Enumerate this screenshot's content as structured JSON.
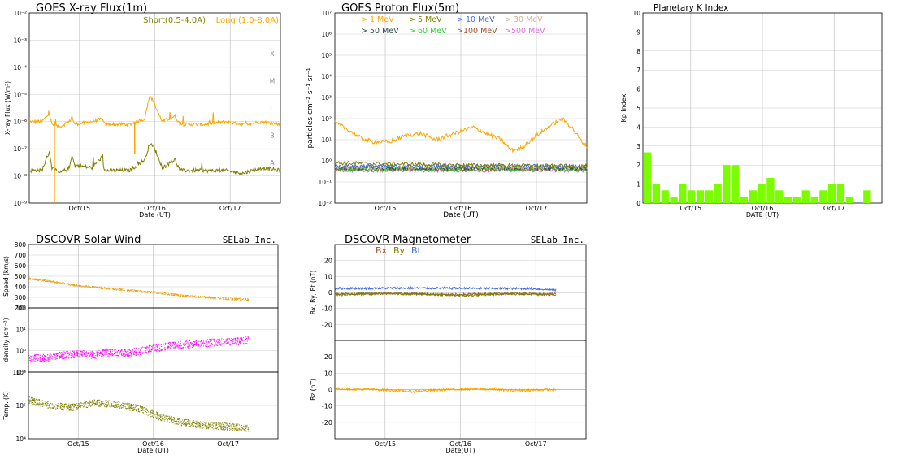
{
  "chart_data": [
    {
      "id": "xray",
      "type": "line",
      "title": "GOES X-ray Flux(1m)",
      "xlabel": "Date (UT)",
      "ylabel": "X-ray Flux (W/m²)",
      "yscale": "log",
      "ylim": [
        1e-09,
        0.01
      ],
      "y_ticks": [
        "10⁻²",
        "10⁻³",
        "10⁻⁴",
        "10⁻⁵",
        "10⁻⁶",
        "10⁻⁷",
        "10⁻⁸",
        "10⁻⁹"
      ],
      "x_ticks": [
        "Oct/15",
        "Oct/16",
        "Oct/17"
      ],
      "flare_classes": [
        "X",
        "M",
        "C",
        "B",
        "A"
      ],
      "grid": true,
      "series": [
        {
          "name": "Short(0.5-4.0A)",
          "color": "#808000",
          "anchors": [
            [
              0,
              -7.8
            ],
            [
              0.05,
              -7.8
            ],
            [
              0.08,
              -7.1
            ],
            [
              0.09,
              -7.7
            ],
            [
              0.12,
              -7.9
            ],
            [
              0.16,
              -7.7
            ],
            [
              0.17,
              -7.2
            ],
            [
              0.18,
              -7.6
            ],
            [
              0.25,
              -7.7
            ],
            [
              0.29,
              -7.3
            ],
            [
              0.3,
              -7.8
            ],
            [
              0.4,
              -7.8
            ],
            [
              0.46,
              -7.4
            ],
            [
              0.48,
              -6.8
            ],
            [
              0.5,
              -7.0
            ],
            [
              0.53,
              -7.7
            ],
            [
              0.58,
              -7.4
            ],
            [
              0.6,
              -7.8
            ],
            [
              0.7,
              -7.8
            ],
            [
              0.78,
              -7.8
            ],
            [
              0.85,
              -7.9
            ],
            [
              0.93,
              -7.7
            ],
            [
              1,
              -7.8
            ]
          ]
        },
        {
          "name": "Long (1.0-8.0A)",
          "color": "#ffa500",
          "anchors": [
            [
              0,
              -6.0
            ],
            [
              0.05,
              -6.0
            ],
            [
              0.08,
              -5.7
            ],
            [
              0.09,
              -6.1
            ],
            [
              0.12,
              -6.2
            ],
            [
              0.16,
              -6.0
            ],
            [
              0.17,
              -5.8
            ],
            [
              0.18,
              -6.1
            ],
            [
              0.25,
              -6.0
            ],
            [
              0.29,
              -5.9
            ],
            [
              0.3,
              -6.1
            ],
            [
              0.4,
              -6.1
            ],
            [
              0.46,
              -5.9
            ],
            [
              0.48,
              -5.0
            ],
            [
              0.5,
              -5.4
            ],
            [
              0.53,
              -6.0
            ],
            [
              0.58,
              -5.8
            ],
            [
              0.6,
              -6.1
            ],
            [
              0.7,
              -6.1
            ],
            [
              0.78,
              -6.0
            ],
            [
              0.85,
              -6.1
            ],
            [
              0.93,
              -6.0
            ],
            [
              1,
              -6.1
            ]
          ]
        }
      ]
    },
    {
      "id": "proton",
      "type": "line",
      "title": "GOES Proton Flux(5m)",
      "xlabel": "Date (UT)",
      "ylabel": "particles cm⁻² s⁻¹ sr⁻¹",
      "yscale": "log",
      "ylim": [
        0.01,
        10000000.0
      ],
      "y_ticks": [
        "10⁷",
        "10⁶",
        "10⁵",
        "10⁴",
        "10³",
        "10²",
        "10¹",
        "10⁰",
        "10⁻¹",
        "10⁻²"
      ],
      "x_ticks": [
        "Oct/15",
        "Oct/16",
        "Oct/17"
      ],
      "grid": true,
      "series": [
        {
          "name": "> 1 MeV",
          "color": "#ffa500",
          "anchors": [
            [
              0,
              1.8
            ],
            [
              0.05,
              1.5
            ],
            [
              0.1,
              1.1
            ],
            [
              0.15,
              0.9
            ],
            [
              0.22,
              0.9
            ],
            [
              0.28,
              1.2
            ],
            [
              0.34,
              1.3
            ],
            [
              0.4,
              1.0
            ],
            [
              0.45,
              1.2
            ],
            [
              0.5,
              1.4
            ],
            [
              0.55,
              1.6
            ],
            [
              0.6,
              1.3
            ],
            [
              0.66,
              1.0
            ],
            [
              0.7,
              0.5
            ],
            [
              0.74,
              0.6
            ],
            [
              0.8,
              1.2
            ],
            [
              0.86,
              1.7
            ],
            [
              0.9,
              2.0
            ],
            [
              0.94,
              1.6
            ],
            [
              0.98,
              0.9
            ],
            [
              1,
              0.7
            ]
          ]
        },
        {
          "name": "> 5 MeV",
          "color": "#808000",
          "anchors": [
            [
              0,
              -0.1
            ],
            [
              0.5,
              -0.2
            ],
            [
              1,
              -0.25
            ]
          ]
        },
        {
          "name": "> 10 MeV",
          "color": "#4169e1",
          "anchors": [
            [
              0,
              -0.25
            ],
            [
              1,
              -0.25
            ]
          ]
        },
        {
          "name": "> 30 MeV",
          "color": "#d2b48c",
          "anchors": [
            [
              0,
              -0.3
            ],
            [
              1,
              -0.3
            ]
          ]
        },
        {
          "name": "> 50 MeV",
          "color": "#2f4f4f",
          "anchors": [
            [
              0,
              -0.35
            ],
            [
              1,
              -0.35
            ]
          ]
        },
        {
          "name": "> 60 MeV",
          "color": "#32cd32",
          "anchors": [
            [
              0,
              -0.4
            ],
            [
              1,
              -0.4
            ]
          ]
        },
        {
          "name": ">100 MeV",
          "color": "#a0522d",
          "anchors": [
            [
              0,
              -0.4
            ],
            [
              1,
              -0.4
            ]
          ]
        },
        {
          "name": ">500 MeV",
          "color": "#da70d6",
          "anchors": [
            [
              0,
              -0.45
            ],
            [
              1,
              -0.45
            ]
          ]
        }
      ]
    },
    {
      "id": "kp",
      "type": "bar",
      "title": "Planetary K Index",
      "xlabel": "DATE (UT)",
      "ylabel": "Kp Index",
      "ylim": [
        0,
        10
      ],
      "y_ticks": [
        "10",
        "9",
        "8",
        "7",
        "6",
        "5",
        "4",
        "3",
        "2",
        "1",
        "0"
      ],
      "x_ticks": [
        "Oct/15",
        "Oct/16",
        "Oct/17"
      ],
      "grid": true,
      "color": "#7cfc00",
      "values": [
        2.67,
        1.0,
        0.67,
        0.33,
        1.0,
        0.67,
        0.67,
        0.67,
        1.0,
        2.0,
        2.0,
        0.33,
        0.67,
        1.0,
        1.33,
        0.67,
        0.33,
        0.33,
        0.67,
        0.33,
        0.67,
        1.0,
        1.0,
        0.33,
        0.0,
        0.67
      ]
    },
    {
      "id": "solarwind",
      "type": "scatter",
      "title": "DSCOVR Solar Wind",
      "credit": "SELab Inc.",
      "xlabel": "Date (UT)",
      "x_ticks": [
        "Oct/15",
        "Oct/16",
        "Oct/17"
      ],
      "grid": true,
      "panels": [
        {
          "ylabel": "Speed (km/s)",
          "ylim": [
            200,
            800
          ],
          "y_ticks": [
            "800",
            "700",
            "600",
            "500",
            "400",
            "300",
            "200"
          ],
          "color": "#e8a317",
          "anchors": [
            [
              0,
              480
            ],
            [
              0.08,
              460
            ],
            [
              0.2,
              420
            ],
            [
              0.3,
              400
            ],
            [
              0.4,
              380
            ],
            [
              0.5,
              360
            ],
            [
              0.6,
              345
            ],
            [
              0.7,
              320
            ],
            [
              0.8,
              305
            ],
            [
              0.9,
              290
            ],
            [
              1,
              285
            ]
          ]
        },
        {
          "ylabel": "density (cm⁻³)",
          "yscale": "log",
          "ylim": [
            -1,
            2
          ],
          "y_ticks": [
            "10²",
            "10¹",
            "10⁰",
            "10⁻¹"
          ],
          "color": "#ff00ff",
          "anchors": [
            [
              0,
              -0.35
            ],
            [
              0.1,
              -0.3
            ],
            [
              0.15,
              -0.2
            ],
            [
              0.25,
              -0.1
            ],
            [
              0.3,
              -0.2
            ],
            [
              0.35,
              -0.05
            ],
            [
              0.45,
              -0.1
            ],
            [
              0.55,
              0.1
            ],
            [
              0.65,
              0.25
            ],
            [
              0.75,
              0.35
            ],
            [
              0.85,
              0.4
            ],
            [
              0.95,
              0.45
            ],
            [
              1,
              0.5
            ]
          ]
        },
        {
          "ylabel": "Temp. (K)",
          "yscale": "log",
          "ylim": [
            3.7,
            6.1
          ],
          "y_ticks": [
            "10⁶",
            "10⁵",
            "10⁴"
          ],
          "color": "#808000",
          "anchors": [
            [
              0,
              5.1
            ],
            [
              0.1,
              4.9
            ],
            [
              0.2,
              4.85
            ],
            [
              0.3,
              5.0
            ],
            [
              0.4,
              4.95
            ],
            [
              0.5,
              4.8
            ],
            [
              0.6,
              4.5
            ],
            [
              0.7,
              4.3
            ],
            [
              0.8,
              4.2
            ],
            [
              0.9,
              4.15
            ],
            [
              1,
              4.1
            ]
          ]
        }
      ]
    },
    {
      "id": "mag",
      "type": "line",
      "title": "DSCOVR Magnetometer",
      "credit": "SELab Inc.",
      "xlabel": "Date(UT)",
      "x_ticks": [
        "Oct/15",
        "Oct/16",
        "Oct/17"
      ],
      "grid": true,
      "legend": [
        {
          "name": "Bx",
          "color": "#a0522d"
        },
        {
          "name": "By",
          "color": "#808000"
        },
        {
          "name": "Bt",
          "color": "#4169e1"
        }
      ],
      "panels": [
        {
          "ylabel": "Bx, By, Bt (nT)",
          "ylim": [
            -30,
            30
          ],
          "y_ticks": [
            "20",
            "10",
            "0",
            "-10",
            "-20"
          ],
          "series": [
            {
              "name": "Bt",
              "color": "#4169e1",
              "anchors": [
                [
                  0,
                  2.5
                ],
                [
                  0.3,
                  2.8
                ],
                [
                  0.6,
                  2.6
                ],
                [
                  0.9,
                  2.4
                ],
                [
                  1,
                  1.5
                ]
              ]
            },
            {
              "name": "Bx",
              "color": "#a0522d",
              "anchors": [
                [
                  0,
                  -1
                ],
                [
                  0.3,
                  -0.5
                ],
                [
                  0.5,
                  -1.5
                ],
                [
                  0.7,
                  -0.8
                ],
                [
                  1,
                  -1
                ]
              ]
            },
            {
              "name": "By",
              "color": "#808000",
              "anchors": [
                [
                  0,
                  -1.5
                ],
                [
                  0.2,
                  -0.5
                ],
                [
                  0.4,
                  -1
                ],
                [
                  0.6,
                  -2
                ],
                [
                  0.8,
                  -0.5
                ],
                [
                  1,
                  -1.5
                ]
              ]
            }
          ]
        },
        {
          "ylabel": "Bz (nT)",
          "ylim": [
            -30,
            30
          ],
          "y_ticks": [
            "20",
            "10",
            "0",
            "-10",
            "-20"
          ],
          "series": [
            {
              "name": "Bz",
              "color": "#ffa500",
              "anchors": [
                [
                  0,
                  0.5
                ],
                [
                  0.2,
                  0
                ],
                [
                  0.35,
                  -1.2
                ],
                [
                  0.5,
                  0
                ],
                [
                  0.65,
                  0.5
                ],
                [
                  0.8,
                  -0.5
                ],
                [
                  1,
                  0
                ]
              ]
            }
          ]
        }
      ]
    }
  ]
}
